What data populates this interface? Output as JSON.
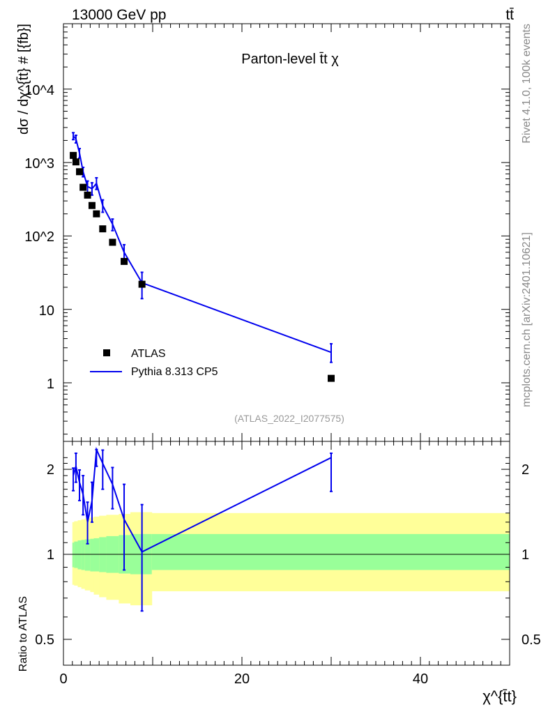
{
  "header": {
    "left": "13000 GeV pp",
    "right": "tt̄"
  },
  "side_labels": {
    "top": "Rivet 4.1.0,  100k events",
    "bottom": "mcplots.cern.ch [arXiv:2401.10621]"
  },
  "chart_data": [
    {
      "type": "scatter",
      "title": "Parton-level t̄t χ",
      "ylabel": "dσ / dχ^{t̄t} # [{fb}]",
      "xlabel": "",
      "yscale": "log",
      "xlim": [
        0,
        50
      ],
      "ylim": [
        0.2,
        90000
      ],
      "y_tick_labels": [
        "1",
        "10",
        "10^2",
        "10^3",
        "10^4"
      ],
      "watermark": "(ATLAS_2022_I2077575)",
      "legend": [
        {
          "label": "ATLAS",
          "marker": "square"
        },
        {
          "label": "Pythia 8.313 CP5",
          "marker": "line"
        }
      ],
      "series": [
        {
          "name": "ATLAS",
          "color": "#000000",
          "x": [
            1.1,
            1.4,
            1.8,
            2.2,
            2.7,
            3.2,
            3.7,
            4.4,
            5.5,
            6.8,
            8.8,
            30
          ],
          "values": [
            1250,
            1020,
            750,
            460,
            360,
            260,
            200,
            125,
            82,
            45,
            22,
            1.15
          ]
        },
        {
          "name": "Pythia 8.313 CP5",
          "color": "#0000ee",
          "x": [
            1.1,
            1.4,
            1.8,
            2.2,
            2.7,
            3.2,
            3.7,
            4.4,
            5.5,
            6.8,
            8.8,
            30
          ],
          "values": [
            2300,
            2100,
            1350,
            750,
            470,
            440,
            520,
            260,
            145,
            60,
            23,
            2.6
          ],
          "err_lo": [
            2050,
            1850,
            1150,
            640,
            390,
            360,
            430,
            210,
            118,
            44,
            14,
            1.9
          ],
          "err_hi": [
            2550,
            2350,
            1550,
            860,
            560,
            530,
            620,
            310,
            170,
            76,
            32,
            3.4
          ]
        }
      ]
    },
    {
      "type": "line",
      "ylabel": "Ratio to ATLAS",
      "xlabel": "χ^{t̄t}",
      "yscale": "log",
      "xlim": [
        0,
        50
      ],
      "ylim": [
        0.4,
        2.3
      ],
      "x_ticks": [
        0,
        20,
        40
      ],
      "y_ticks": [
        0.5,
        1,
        2
      ],
      "reference_line": 1,
      "bands": {
        "edges": [
          1,
          1.2,
          1.6,
          2.0,
          2.4,
          3.0,
          3.4,
          4.0,
          4.8,
          6.2,
          7.5,
          9.9,
          50
        ],
        "green_lo": [
          0.9,
          0.895,
          0.885,
          0.88,
          0.875,
          0.87,
          0.87,
          0.865,
          0.86,
          0.855,
          0.85,
          0.88
        ],
        "green_hi": [
          1.1,
          1.11,
          1.12,
          1.125,
          1.13,
          1.135,
          1.14,
          1.15,
          1.16,
          1.17,
          1.18,
          1.18
        ],
        "yellow_lo": [
          0.78,
          0.775,
          0.765,
          0.755,
          0.745,
          0.735,
          0.72,
          0.705,
          0.69,
          0.67,
          0.66,
          0.74
        ],
        "yellow_hi": [
          1.3,
          1.31,
          1.32,
          1.33,
          1.34,
          1.35,
          1.36,
          1.37,
          1.38,
          1.39,
          1.41,
          1.4
        ]
      },
      "series": [
        {
          "name": "Pythia 8.313 CP5 / ATLAS",
          "color": "#0000ee",
          "x": [
            1.1,
            1.4,
            1.8,
            2.2,
            2.7,
            3.2,
            3.7,
            4.4,
            5.5,
            6.8,
            8.8,
            30
          ],
          "values": [
            1.9,
            2.05,
            1.8,
            1.63,
            1.3,
            1.55,
            2.35,
            2.1,
            1.77,
            1.33,
            1.02,
            2.2
          ],
          "err_lo": [
            1.68,
            1.8,
            1.55,
            1.38,
            1.09,
            1.3,
            2.05,
            1.7,
            1.45,
            0.88,
            0.63,
            1.67
          ],
          "err_hi": [
            2.02,
            2.28,
            1.99,
            1.9,
            1.53,
            1.8,
            2.35,
            2.34,
            2.03,
            1.77,
            1.5,
            2.28
          ]
        }
      ]
    }
  ]
}
